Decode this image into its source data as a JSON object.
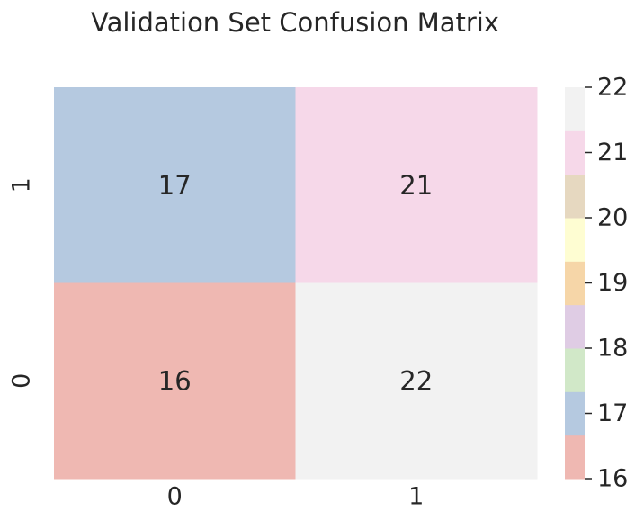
{
  "chart_data": {
    "type": "heatmap",
    "title": "Validation Set Confusion Matrix",
    "xlabel": "",
    "ylabel": "",
    "x_categories": [
      "0",
      "1"
    ],
    "y_categories": [
      "1",
      "0"
    ],
    "values": [
      [
        17,
        21
      ],
      [
        16,
        22
      ]
    ],
    "colorbar": {
      "min": 16,
      "max": 22,
      "ticks": [
        "16",
        "17",
        "18",
        "19",
        "20",
        "21",
        "22"
      ],
      "colors": [
        "#efb8b2",
        "#b5c9e0",
        "#d1e8c8",
        "#dfcce4",
        "#f6d6a8",
        "#fefdd2",
        "#e6d8c0",
        "#f6d8e9",
        "#f2f2f2"
      ]
    },
    "annotations": true,
    "grid": false,
    "legend": "colorbar-right"
  }
}
